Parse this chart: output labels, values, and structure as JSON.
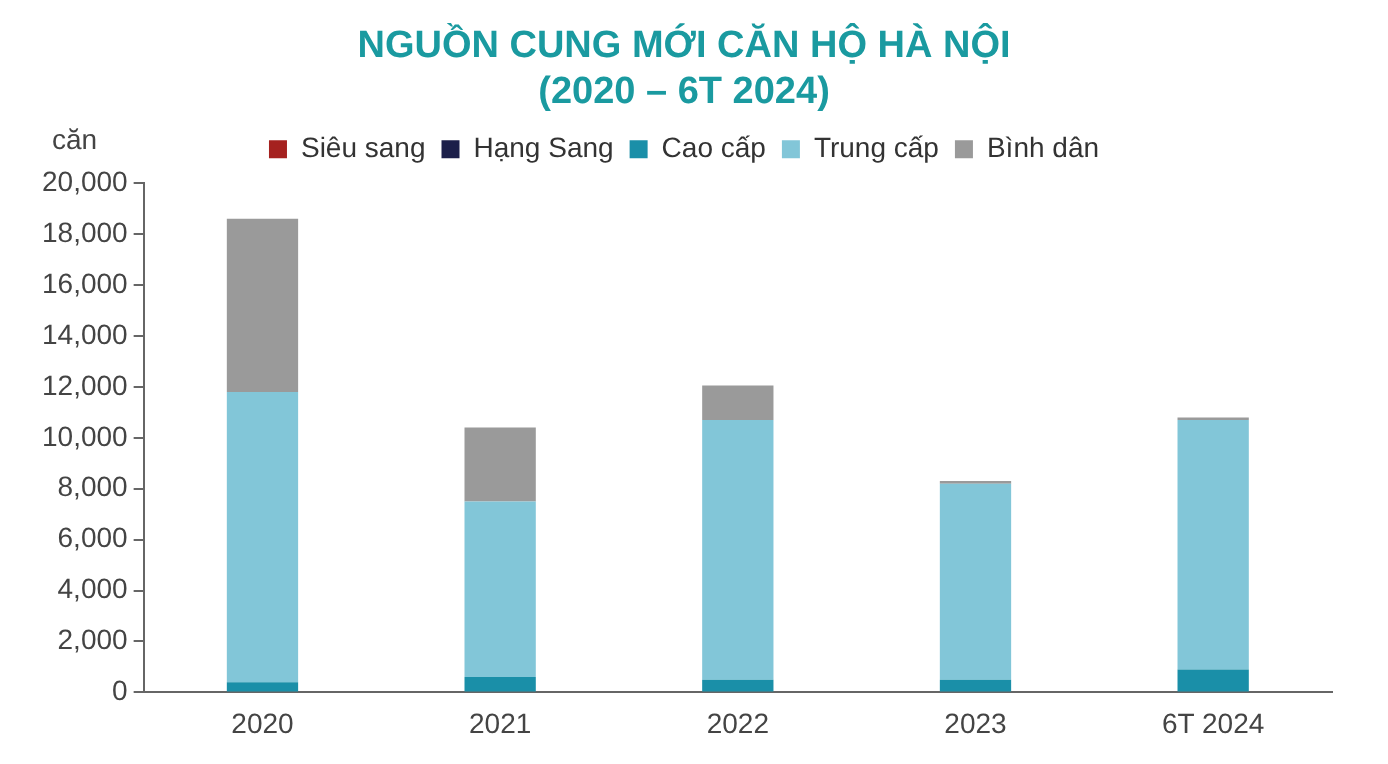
{
  "chart_data": {
    "type": "bar",
    "title": "NGUỒN CUNG MỚI CĂN HỘ HÀ NỘI\n(2020 – 6T 2024)",
    "ylabel": "căn",
    "categories": [
      "2020",
      "2021",
      "2022",
      "2023",
      "6T 2024"
    ],
    "stacked": true,
    "ylim": [
      0,
      20000
    ],
    "yticks": [
      {
        "value": 0,
        "label": "0"
      },
      {
        "value": 2000,
        "label": "2,000"
      },
      {
        "value": 4000,
        "label": "4,000"
      },
      {
        "value": 6000,
        "label": "6,000"
      },
      {
        "value": 8000,
        "label": "8,000"
      },
      {
        "value": 10000,
        "label": "10,000"
      },
      {
        "value": 12000,
        "label": "12,000"
      },
      {
        "value": 14000,
        "label": "14,000"
      },
      {
        "value": 16000,
        "label": "16,000"
      },
      {
        "value": 18000,
        "label": "18,000"
      },
      {
        "value": 20000,
        "label": "20,000"
      }
    ],
    "grid": false,
    "legend": "top",
    "series": [
      {
        "name": "Siêu sang",
        "color": "#a5211f",
        "values": [
          0,
          0,
          0,
          0,
          0
        ]
      },
      {
        "name": "Hạng Sang",
        "color": "#1c1f4a",
        "values": [
          0,
          0,
          0,
          0,
          0
        ]
      },
      {
        "name": "Cao cấp",
        "color": "#1a8fa8",
        "values": [
          400,
          600,
          500,
          500,
          900
        ]
      },
      {
        "name": "Trung cấp",
        "color": "#82c6d8",
        "values": [
          11400,
          6900,
          10200,
          7700,
          9800
        ]
      },
      {
        "name": "Bình dân",
        "color": "#9a9a9a",
        "values": [
          6800,
          2900,
          1350,
          100,
          100
        ]
      }
    ]
  }
}
